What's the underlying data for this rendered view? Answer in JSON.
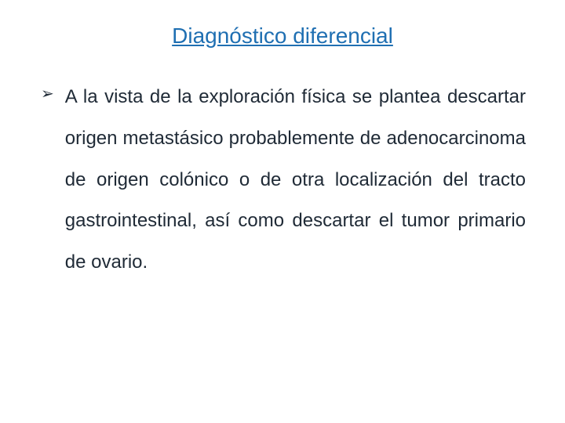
{
  "title_color": "#1f6fb2",
  "body_color": "#1f2a36",
  "background_color": "#ffffff",
  "title_fontsize": 28,
  "body_fontsize": 24,
  "line_height": 2.2,
  "bullet_glyph": "➢",
  "title": "Diagnóstico diferencial",
  "body": "A la vista de la exploración física se plantea descartar origen metastásico probablemente de adenocarcinoma de origen colónico o de otra localización del tracto gastrointestinal, así como descartar el tumor primario de ovario."
}
